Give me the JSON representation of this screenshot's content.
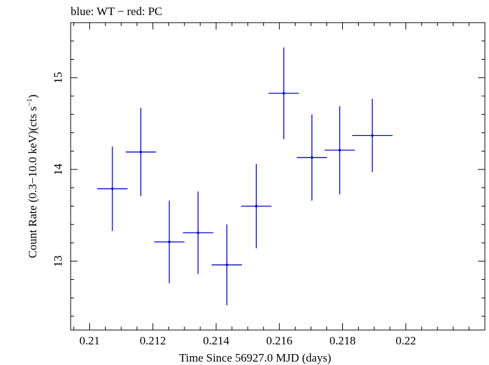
{
  "chart_data": {
    "type": "scatter",
    "title": "blue: WT − red: PC",
    "xlabel": "Time Since 56927.0 MJD (days)",
    "ylabel_main": "Count Rate (0.3−10.0 keV)(cts s",
    "ylabel_sup": "−1",
    "ylabel_close": ")",
    "xlim": [
      0.2094,
      0.2225
    ],
    "ylim": [
      12.25,
      15.6
    ],
    "x_ticks": [
      {
        "value": 0.21,
        "label": "0.21"
      },
      {
        "value": 0.212,
        "label": "0.212"
      },
      {
        "value": 0.214,
        "label": "0.214"
      },
      {
        "value": 0.216,
        "label": "0.216"
      },
      {
        "value": 0.218,
        "label": "0.218"
      },
      {
        "value": 0.22,
        "label": "0.22"
      }
    ],
    "y_ticks": [
      {
        "value": 13,
        "label": "13"
      },
      {
        "value": 14,
        "label": "14"
      },
      {
        "value": 15,
        "label": "15"
      }
    ],
    "x_minor_step": 0.0005,
    "y_minor_step": 0.2,
    "grid": false,
    "series": [
      {
        "color": "#0000cc",
        "points": [
          {
            "x": 0.21072,
            "xerr": 0.00048,
            "y": 13.79,
            "yerr": 0.46
          },
          {
            "x": 0.21162,
            "xerr": 0.00048,
            "y": 14.19,
            "yerr": 0.48
          },
          {
            "x": 0.21252,
            "xerr": 0.00048,
            "y": 13.21,
            "yerr": 0.45
          },
          {
            "x": 0.21343,
            "xerr": 0.00048,
            "y": 13.31,
            "yerr": 0.45
          },
          {
            "x": 0.21434,
            "xerr": 0.00048,
            "y": 12.96,
            "yerr": 0.44
          },
          {
            "x": 0.21527,
            "xerr": 0.00048,
            "y": 13.6,
            "yerr": 0.46
          },
          {
            "x": 0.21614,
            "xerr": 0.00048,
            "y": 14.83,
            "yerr": 0.5
          },
          {
            "x": 0.21703,
            "xerr": 0.00048,
            "y": 14.13,
            "yerr": 0.47
          },
          {
            "x": 0.21791,
            "xerr": 0.00048,
            "y": 14.21,
            "yerr": 0.48
          },
          {
            "x": 0.21894,
            "xerr": 0.00064,
            "y": 14.37,
            "yerr": 0.4
          }
        ]
      }
    ]
  }
}
